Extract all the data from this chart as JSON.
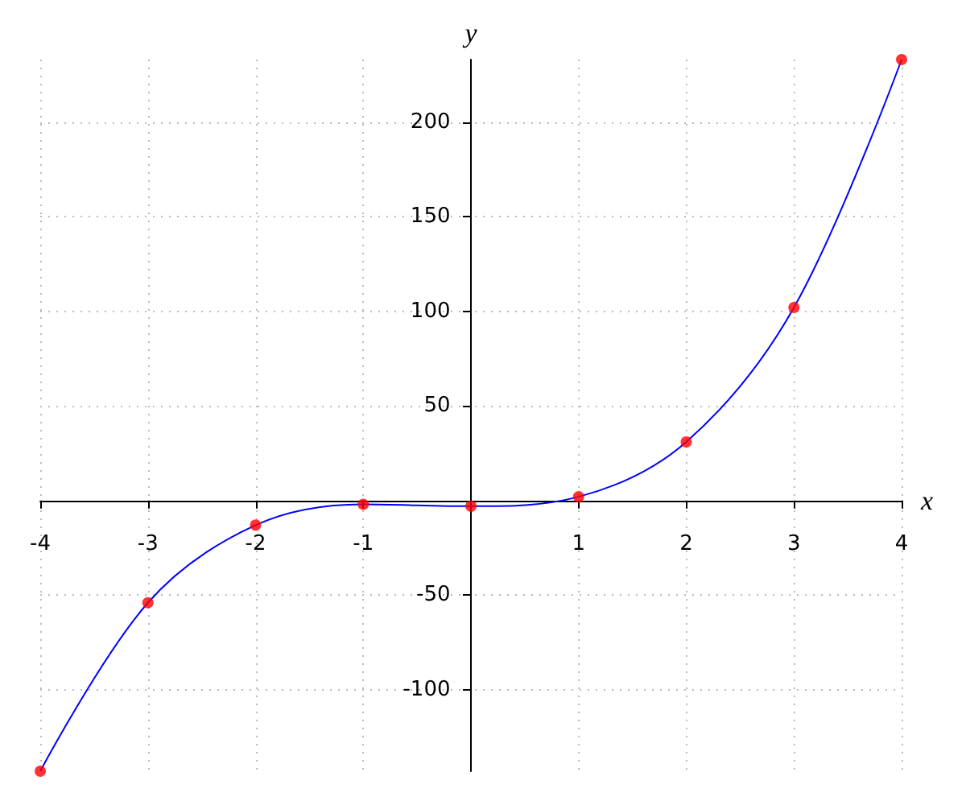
{
  "chart_data": {
    "type": "line",
    "xlabel": "x",
    "ylabel": "y",
    "xlim": [
      -4,
      4
    ],
    "ylim": [
      -143,
      233
    ],
    "xticks": [
      -4,
      -3,
      -2,
      -1,
      1,
      2,
      3,
      4
    ],
    "yticks": [
      -100,
      -50,
      50,
      100,
      150,
      200
    ],
    "grid": true,
    "series": [
      {
        "color": "#0000ff",
        "marker": "none",
        "x": [
          -4,
          -3,
          -2,
          -1,
          0,
          1,
          2,
          3,
          4
        ],
        "values": [
          -143,
          -54,
          -13,
          -2,
          -3,
          2,
          31,
          102,
          233
        ]
      },
      {
        "type": "scatter",
        "color": "#ff0000",
        "marker": "circle",
        "x": [
          -4,
          -3,
          -2,
          -1,
          0,
          1,
          2,
          3,
          4
        ],
        "values": [
          -143,
          -54,
          -13,
          -2,
          -3,
          2,
          31,
          102,
          233
        ]
      }
    ]
  }
}
